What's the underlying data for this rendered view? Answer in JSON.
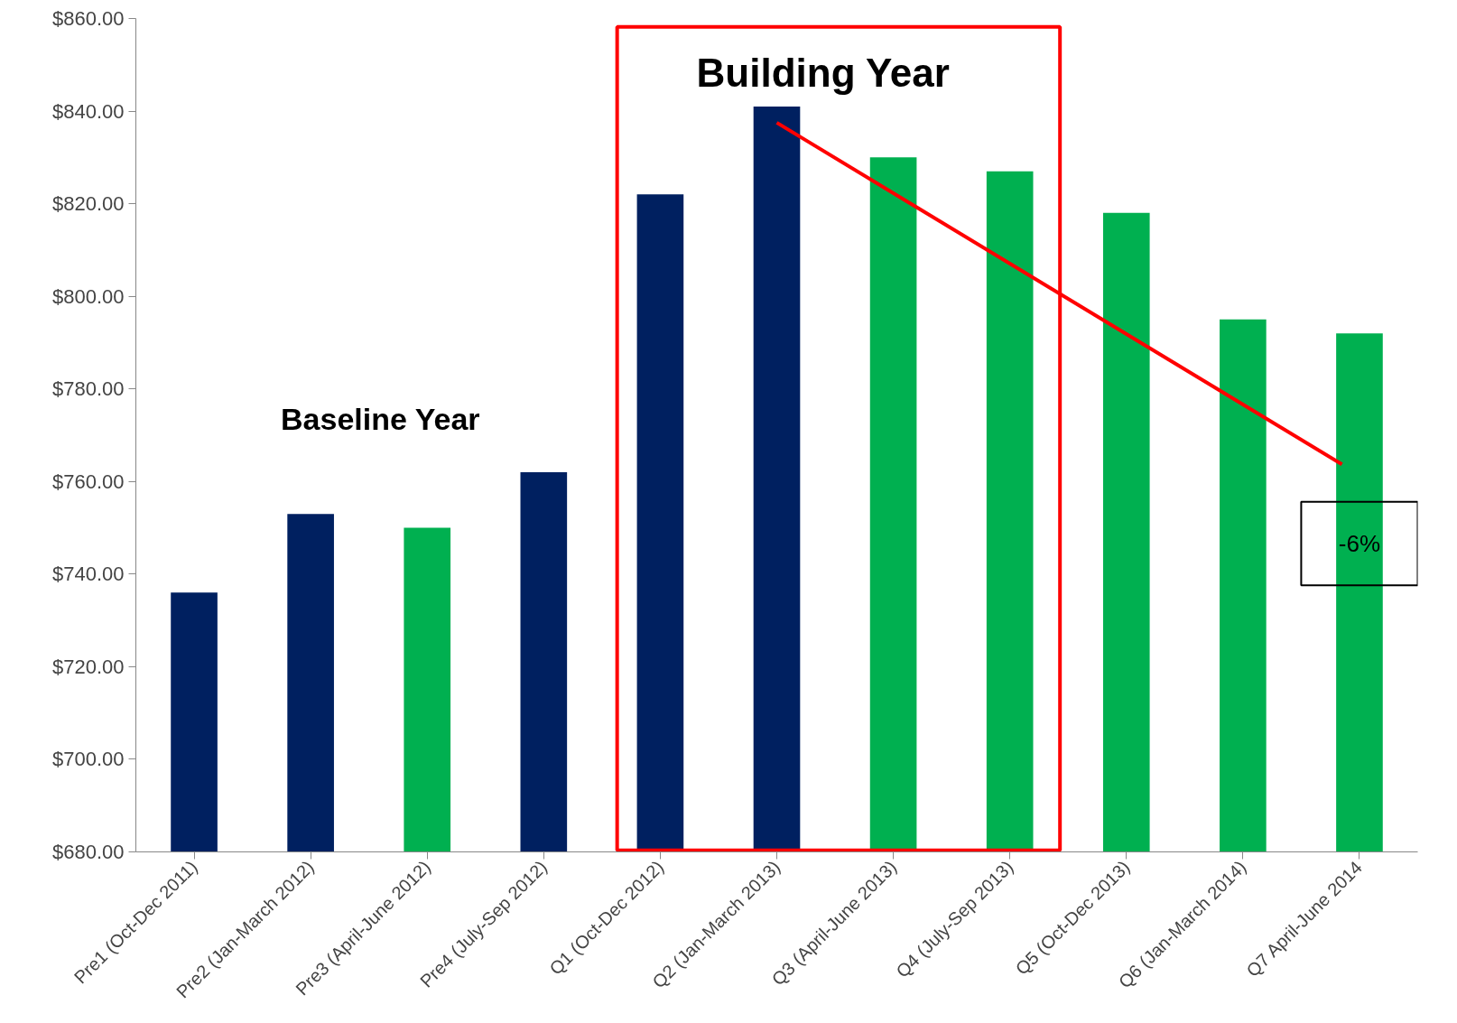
{
  "chart_data": {
    "type": "bar",
    "categories": [
      "Pre1 (Oct-Dec 2011)",
      "Pre2 (Jan-March 2012)",
      "Pre3 (April-June 2012)",
      "Pre4 (July-Sep 2012)",
      "Q1 (Oct-Dec 2012)",
      "Q2 (Jan-March 2013)",
      "Q3 (April-June 2013)",
      "Q4 (July-Sep 2013)",
      "Q5 (Oct-Dec 2013)",
      "Q6 (Jan-March 2014)",
      "Q7 April-June 2014"
    ],
    "values": [
      736,
      753,
      750,
      762,
      822,
      841,
      830,
      827,
      818,
      795,
      792
    ],
    "colors": [
      "#002060",
      "#002060",
      "#00b050",
      "#002060",
      "#002060",
      "#002060",
      "#00b050",
      "#00b050",
      "#00b050",
      "#00b050",
      "#00b050"
    ],
    "ylim": [
      680,
      860
    ],
    "yticks": [
      {
        "value": 680,
        "label": "$680.00"
      },
      {
        "value": 700,
        "label": "$700.00"
      },
      {
        "value": 720,
        "label": "$720.00"
      },
      {
        "value": 740,
        "label": "$740.00"
      },
      {
        "value": 760,
        "label": "$760.00"
      },
      {
        "value": 780,
        "label": "$780.00"
      },
      {
        "value": 800,
        "label": "$800.00"
      },
      {
        "value": 820,
        "label": "$820.00"
      },
      {
        "value": 840,
        "label": "$840.00"
      },
      {
        "value": 860,
        "label": "$860.00"
      }
    ],
    "grid": false,
    "legend": false,
    "annotations": [
      "Building Year",
      "Baseline Year",
      "-6%"
    ]
  }
}
